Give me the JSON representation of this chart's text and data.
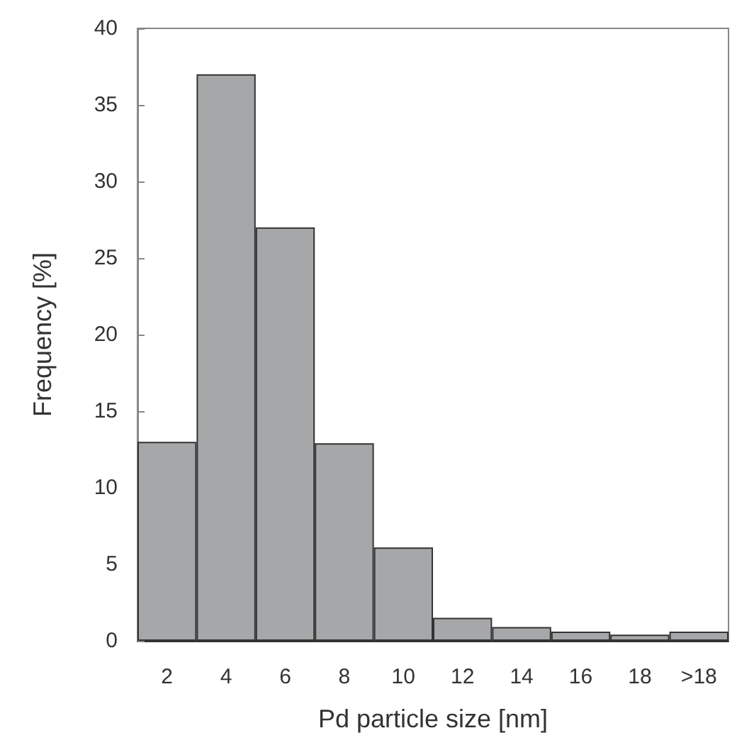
{
  "chart_data": {
    "type": "bar",
    "xlabel": "Pd particle size [nm]",
    "ylabel": "Frequency [%]",
    "categories": [
      "2",
      "4",
      "6",
      "8",
      "10",
      "12",
      "14",
      "16",
      "18",
      ">18"
    ],
    "values": [
      13,
      37,
      27,
      12.9,
      6.1,
      1.5,
      0.9,
      0.6,
      0.4,
      0.6
    ],
    "color": "#a6a7a9",
    "ylim": [
      0,
      40
    ],
    "yticks": [
      0,
      5,
      10,
      15,
      20,
      25,
      30,
      35,
      40
    ],
    "grid": false
  }
}
